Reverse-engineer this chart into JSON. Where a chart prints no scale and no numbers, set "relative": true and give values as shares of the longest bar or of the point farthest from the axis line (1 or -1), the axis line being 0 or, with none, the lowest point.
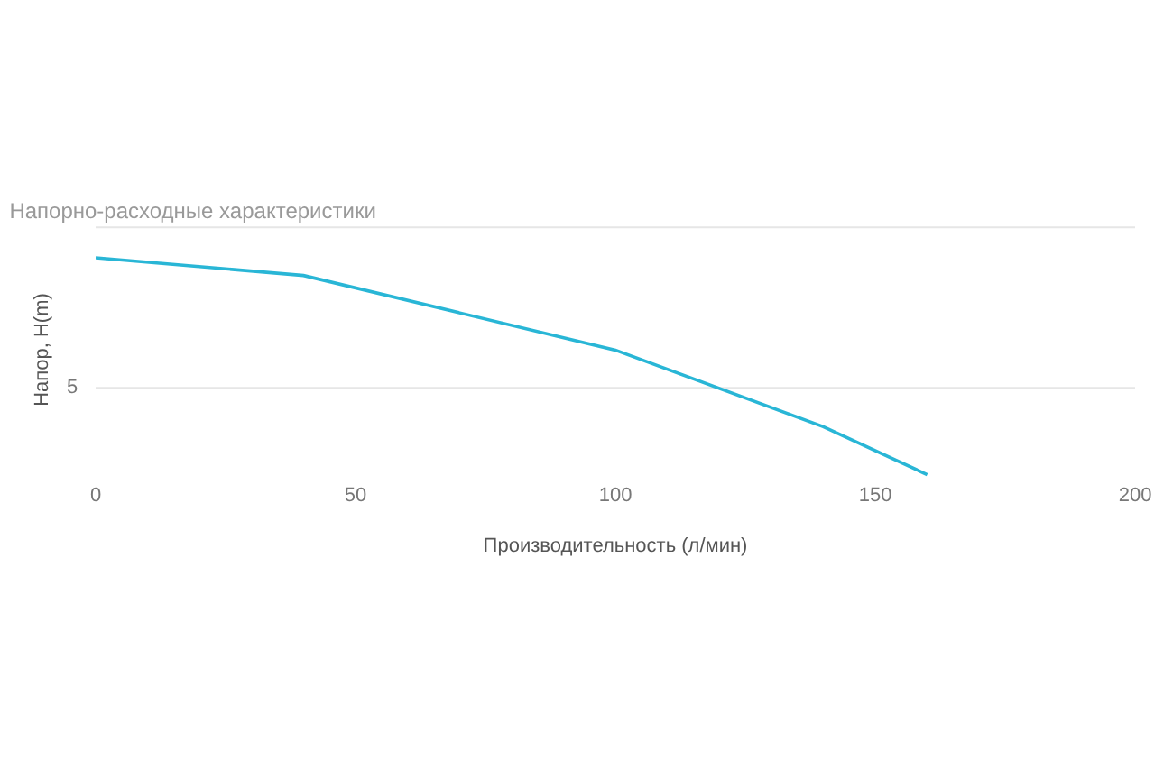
{
  "chart_data": {
    "type": "line",
    "title": "Напорно-расходные характеристики",
    "xlabel": "Производительность (л/мин)",
    "ylabel": "Напор, H(m)",
    "relative": true,
    "x": [
      0,
      40,
      100,
      140,
      160
    ],
    "series": [
      {
        "color": "#29b6d6",
        "values": [
          1,
          0.918,
          0.574,
          0.221,
          0
        ]
      }
    ],
    "xlim": [
      0,
      200
    ],
    "xticks": [
      0,
      50,
      100,
      150,
      200
    ],
    "ref_lines": [
      {
        "axis": "y",
        "value": 0.4,
        "color": "#e6e6e6"
      },
      {
        "axis": "y",
        "value": 1.14,
        "color": "#e6e6e6"
      }
    ],
    "annotations": [
      "5"
    ],
    "marker": "none",
    "line_style": "solid"
  }
}
